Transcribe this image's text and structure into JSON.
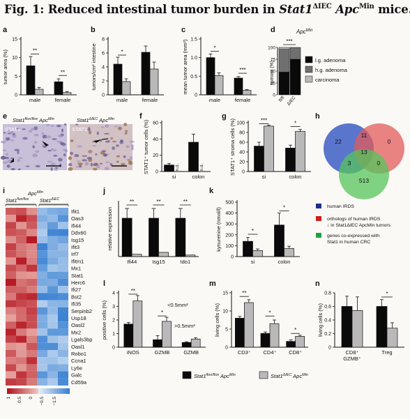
{
  "figure": {
    "title": {
      "prefix": "Fig. 1: Reduced intestinal tumor burden in ",
      "gene1": "Stat1",
      "gene1_sup": "ΔIEC",
      "gene2": "Apc",
      "gene2_sup": "Min",
      "suffix": " mice."
    }
  },
  "colors": {
    "black_bar": "#0a0a0a",
    "gray_bar": "#b9b9b9",
    "dgray_bar": "#707070",
    "blue": "#1c2f8f",
    "red": "#cc1f1f",
    "green": "#1ea33e"
  },
  "panels": {
    "a": {
      "letter": "a",
      "ylabel": "tumor area (%)",
      "ticks": [
        "0",
        "5",
        "10",
        "15"
      ],
      "ymax": 15,
      "categories": [
        "male",
        "female"
      ],
      "sig": [
        "**",
        "**"
      ]
    },
    "b": {
      "letter": "b",
      "ylabel": "tumors/cm² intestine",
      "ticks": [
        "0",
        "2",
        "4",
        "6",
        "8"
      ],
      "ymax": 8,
      "categories": [
        "male",
        "female"
      ],
      "sig": [
        "*"
      ]
    },
    "c": {
      "letter": "c",
      "ylabel": "mean tumor area (mm²)",
      "ticks": [
        "0",
        "0.5",
        "1.0",
        "1.5"
      ],
      "ymax": 1.5,
      "categories": [
        "male",
        "female"
      ],
      "sig": [
        "*",
        "***"
      ]
    },
    "d": {
      "letter": "d",
      "title": "Apc",
      "title_sup": "Min",
      "ylabel": "tumors (%)",
      "ticks": [
        "0",
        "25",
        "50",
        "75",
        "100"
      ],
      "categories": [
        "fl/fl",
        "ΔIEC"
      ],
      "sig": [
        "***"
      ],
      "legend": [
        "l.g. adenoma",
        "h.g. adenoma",
        "carcinoma"
      ]
    },
    "e": {
      "letter": "e",
      "left_label": "Stat1",
      "left_sup": "flox/flox",
      "left_label2": "Apc",
      "left_sup2": "Min",
      "right_label": "Stat1",
      "right_sup": "ΔIEC",
      "right_label2": "Apc",
      "right_sup2": "Min",
      "stain": "STAT1"
    },
    "f": {
      "letter": "f",
      "ylabel": "STAT1⁺ tumor cells (%)",
      "ticks": [
        "0",
        "20",
        "40",
        "60"
      ],
      "ymax": 60,
      "categories": [
        "si",
        "colon"
      ],
      "nd": "n.d."
    },
    "g": {
      "letter": "g",
      "ylabel": "STAT1⁺ stroma cells (%)",
      "ticks": [
        "0",
        "20",
        "40",
        "60",
        "80",
        "100"
      ],
      "ymax": 100,
      "categories": [
        "si",
        "colon"
      ],
      "sig": [
        "***",
        "*"
      ]
    },
    "h": {
      "letter": "h",
      "numbers": [
        "22",
        "11",
        "0",
        "13",
        "3",
        "0",
        "513"
      ],
      "legend": [
        "human IRDS",
        "orthologs of human IRDS ↓ in Stat1ΔIEC ApcMin tumors",
        "genes co-expressed with Stat1 in human CRC"
      ],
      "legend_lines": [
        [
          "human IRDS"
        ],
        [
          "orthologs of human IRDS",
          "↓ in Stat1ΔIEC ApcMin tumors"
        ],
        [
          "genes co-expressed with",
          "Stat1 in human CRC"
        ]
      ]
    },
    "i": {
      "letter": "i",
      "top_label": "Apc",
      "top_sup": "Min",
      "col1": "Stat1",
      "col1_sup": "flox/flox",
      "col2": "Stat1",
      "col2_sup": "ΔIEC",
      "genes": [
        "Ifit1",
        "Oas3",
        "Ifi44",
        "Ddx60",
        "Isg15",
        "Ifit3",
        "Irf7",
        "Ifitm1",
        "Mx1",
        "Stat1",
        "Herc6",
        "Ifi27",
        "Bst2",
        "Ifi35",
        "Serpinb2",
        "Usp18",
        "Oasl2",
        "Mx2",
        "Lgals3bp",
        "Oasl1",
        "Robo1",
        "Ccna1",
        "Ly6e",
        "Galc",
        "Cd59a"
      ],
      "scale": [
        "1",
        "0.5",
        "0",
        "−0.5",
        "−1.5"
      ]
    },
    "j": {
      "letter": "j",
      "ylabel": "relative expression",
      "categories": [
        "Ifi44",
        "Isg15",
        "Ido1"
      ],
      "sig": [
        "**",
        "**",
        "**"
      ]
    },
    "k": {
      "letter": "k",
      "ylabel": "kynurenine (nmol/l)",
      "ticks": [
        "0",
        "100",
        "200",
        "300",
        "400",
        "500"
      ],
      "ymax": 500,
      "categories": [
        "si",
        "colon"
      ],
      "sig": [
        "*",
        "*"
      ]
    },
    "l": {
      "letter": "l",
      "ylabel": "positive cells (%)",
      "ticks": [
        "0",
        "1",
        "2",
        "3",
        "4"
      ],
      "ymax": 4,
      "categories": [
        "iNOS",
        "GZMB",
        "GZMB"
      ],
      "sig": [
        "**",
        "*"
      ],
      "note1": "<0.5mm²",
      "note2": ">0.5mm²"
    },
    "m": {
      "letter": "m",
      "ylabel": "living cells (%)",
      "ticks": [
        "0",
        "5",
        "10",
        "15"
      ],
      "ymax": 15,
      "categories": [
        "CD3⁺",
        "CD4⁺",
        "CD8⁺"
      ],
      "sig": [
        "**",
        "*",
        "*"
      ]
    },
    "n": {
      "letter": "n",
      "ylabel": "living cells (%)",
      "ticks": [
        "0",
        "0.2",
        "0.4",
        "0.6",
        "0.8"
      ],
      "ymax": 0.8,
      "categories": [
        "CD8⁺ GZMB⁺",
        "Treg"
      ],
      "sig": [
        "*"
      ]
    }
  },
  "legend_bottom": {
    "black": {
      "gene": "Stat1",
      "sup": "flox/flox",
      "gene2": "Apc",
      "sup2": "Min"
    },
    "gray": {
      "gene": "Stat1",
      "sup": "ΔIEC",
      "gene2": "Apc",
      "sup2": "Min"
    }
  },
  "chart_data": [
    {
      "panel": "a",
      "type": "bar",
      "categories": [
        "male",
        "female"
      ],
      "series": [
        {
          "values": [
            7.8,
            3.5
          ]
        },
        {
          "values": [
            1.5,
            0.6
          ]
        }
      ],
      "ylim": [
        0,
        15
      ],
      "ylabel": "tumor area (%)"
    },
    {
      "panel": "b",
      "type": "bar",
      "categories": [
        "male",
        "female"
      ],
      "series": [
        {
          "values": [
            4.4,
            6.1
          ]
        },
        {
          "values": [
            1.9,
            3.7
          ]
        }
      ],
      "ylim": [
        0,
        8
      ],
      "ylabel": "tumors/cm² intestine"
    },
    {
      "panel": "c",
      "type": "bar",
      "categories": [
        "male",
        "female"
      ],
      "series": [
        {
          "values": [
            1.0,
            0.45
          ]
        },
        {
          "values": [
            0.52,
            0.12
          ]
        }
      ],
      "ylim": [
        0,
        1.5
      ],
      "ylabel": "mean tumor area (mm²)"
    },
    {
      "panel": "d",
      "type": "bar",
      "categories": [
        "fl/fl",
        "ΔIEC"
      ],
      "series": [
        {
          "name": "l.g. adenoma",
          "values": [
            48,
            75
          ]
        },
        {
          "name": "h.g. adenoma",
          "values": [
            48,
            25
          ]
        },
        {
          "name": "carcinoma",
          "values": [
            4,
            0
          ]
        }
      ],
      "ylim": [
        0,
        100
      ],
      "ylabel": "tumors (%)"
    },
    {
      "panel": "f",
      "type": "bar",
      "categories": [
        "si",
        "colon"
      ],
      "series": [
        {
          "values": [
            8,
            36
          ]
        },
        {
          "values": [
            0,
            0
          ]
        }
      ],
      "ylim": [
        0,
        60
      ],
      "ylabel": "STAT1⁺ tumor cells (%)"
    },
    {
      "panel": "g",
      "type": "bar",
      "categories": [
        "si",
        "colon"
      ],
      "series": [
        {
          "values": [
            52,
            48
          ]
        },
        {
          "values": [
            93,
            82
          ]
        }
      ],
      "ylim": [
        0,
        100
      ],
      "ylabel": "STAT1⁺ stroma cells (%)"
    },
    {
      "panel": "j",
      "type": "bar",
      "categories": [
        "Ifi44",
        "Isg15",
        "Ido1"
      ],
      "series": [
        {
          "values": [
            1.0,
            1.0,
            1.0
          ]
        },
        {
          "values": [
            0.06,
            0.11,
            0.04
          ]
        }
      ],
      "ylabel": "relative expression"
    },
    {
      "panel": "k",
      "type": "bar",
      "categories": [
        "si",
        "colon"
      ],
      "series": [
        {
          "values": [
            140,
            290
          ]
        },
        {
          "values": [
            55,
            75
          ]
        }
      ],
      "ylim": [
        0,
        500
      ],
      "ylabel": "kynurenine (nmol/l)"
    },
    {
      "panel": "l",
      "type": "bar",
      "categories": [
        "iNOS",
        "GZMB",
        "GZMB"
      ],
      "series": [
        {
          "values": [
            1.7,
            0.55,
            0.35
          ]
        },
        {
          "values": [
            3.4,
            1.9,
            0.6
          ]
        }
      ],
      "ylim": [
        0,
        4
      ],
      "ylabel": "positive cells (%)"
    },
    {
      "panel": "m",
      "type": "bar",
      "categories": [
        "CD3⁺",
        "CD4⁺",
        "CD8⁺"
      ],
      "series": [
        {
          "values": [
            8,
            3.8,
            1.6
          ]
        },
        {
          "values": [
            12.3,
            6.5,
            3.0
          ]
        }
      ],
      "ylim": [
        0,
        15
      ],
      "ylabel": "living cells (%)"
    },
    {
      "panel": "n",
      "type": "bar",
      "categories": [
        "CD8⁺ GZMB⁺",
        "Treg"
      ],
      "series": [
        {
          "values": [
            0.6,
            0.6
          ]
        },
        {
          "values": [
            0.54,
            0.28
          ]
        }
      ],
      "ylim": [
        0,
        0.8
      ],
      "ylabel": "living cells (%)"
    }
  ]
}
